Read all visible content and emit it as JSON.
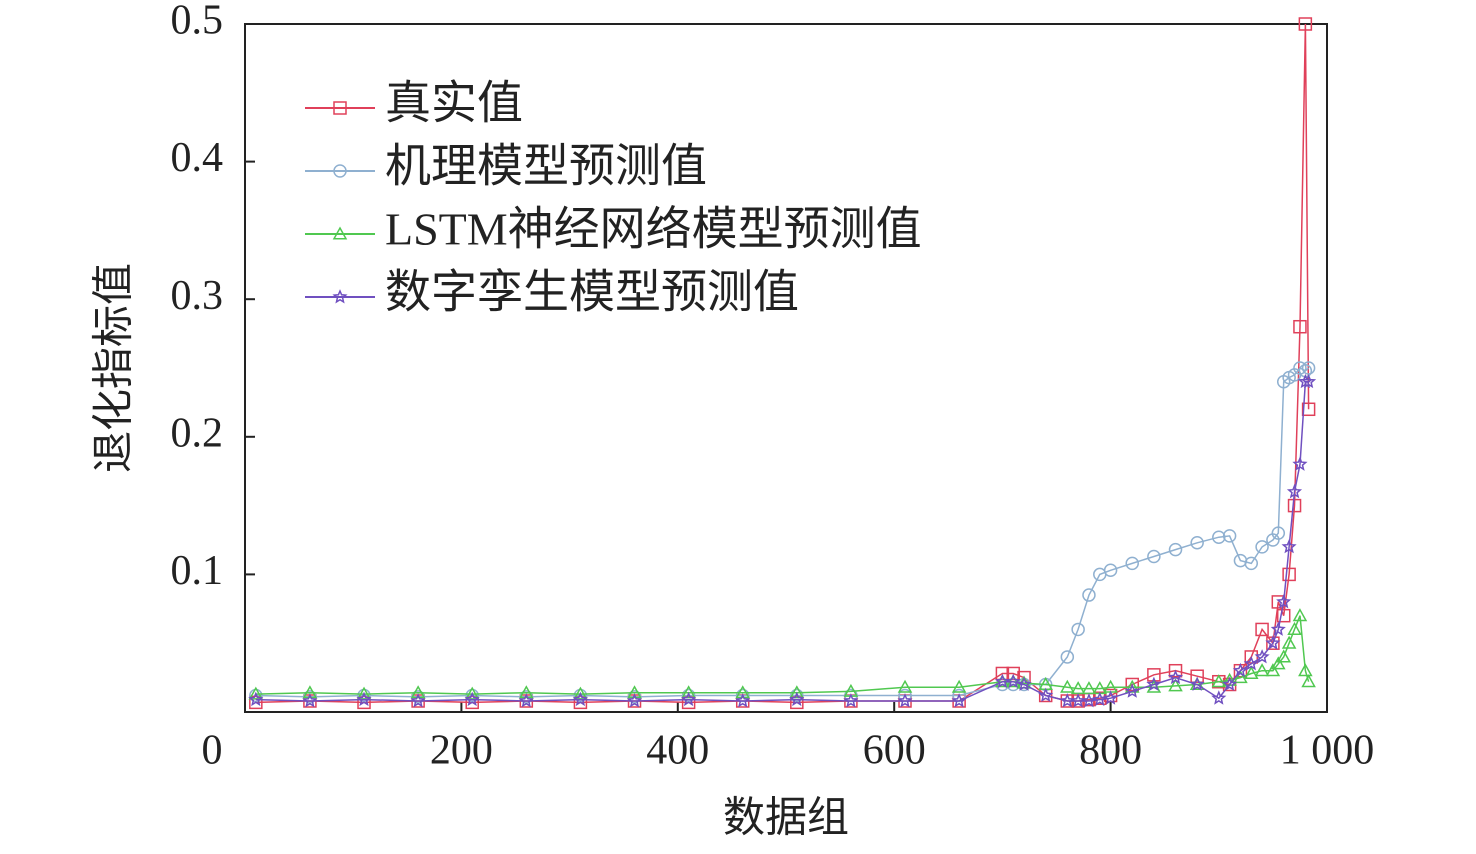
{
  "chart_data": {
    "type": "line",
    "xlabel": "数据组",
    "ylabel": "退化指标值",
    "xlim": [
      0,
      1000
    ],
    "ylim": [
      0,
      0.5
    ],
    "xticks": [
      0,
      200,
      400,
      600,
      800,
      {
        "value": 1000,
        "label": "1 000"
      }
    ],
    "yticks": [
      0.1,
      0.2,
      0.3,
      0.4,
      0.5
    ],
    "legend": "upper left",
    "x": [
      10,
      60,
      110,
      160,
      210,
      260,
      310,
      360,
      410,
      460,
      510,
      560,
      610,
      660,
      700,
      710,
      720,
      740,
      760,
      770,
      780,
      790,
      800,
      820,
      840,
      860,
      880,
      900,
      910,
      920,
      930,
      940,
      950,
      955,
      960,
      965,
      970,
      975,
      980,
      983
    ],
    "series": [
      {
        "name": "真实值",
        "color": "#e0405a",
        "marker": "square",
        "values": [
          0.007,
          0.008,
          0.007,
          0.008,
          0.007,
          0.008,
          0.007,
          0.008,
          0.007,
          0.008,
          0.007,
          0.008,
          0.008,
          0.008,
          0.028,
          0.028,
          0.025,
          0.012,
          0.008,
          0.008,
          0.009,
          0.01,
          0.012,
          0.02,
          0.027,
          0.03,
          0.026,
          0.022,
          0.02,
          0.03,
          0.04,
          0.06,
          0.05,
          0.08,
          0.07,
          0.1,
          0.15,
          0.28,
          0.5,
          0.22
        ]
      },
      {
        "name": "机理模型预测值",
        "color": "#8fb0d0",
        "marker": "circle",
        "values": [
          0.012,
          0.011,
          0.012,
          0.011,
          0.012,
          0.011,
          0.012,
          0.011,
          0.012,
          0.012,
          0.012,
          0.012,
          0.012,
          0.012,
          0.02,
          0.02,
          0.02,
          0.02,
          0.04,
          0.06,
          0.085,
          0.1,
          0.103,
          0.108,
          0.113,
          0.118,
          0.123,
          0.127,
          0.128,
          0.11,
          0.108,
          0.12,
          0.125,
          0.13,
          0.24,
          0.243,
          0.245,
          0.25,
          0.248,
          0.25
        ]
      },
      {
        "name": "LSTM神经网络模型预测值",
        "color": "#50c850",
        "marker": "triangle",
        "values": [
          0.013,
          0.014,
          0.013,
          0.014,
          0.013,
          0.014,
          0.013,
          0.014,
          0.014,
          0.014,
          0.014,
          0.015,
          0.018,
          0.018,
          0.022,
          0.022,
          0.021,
          0.02,
          0.018,
          0.017,
          0.017,
          0.017,
          0.018,
          0.018,
          0.018,
          0.019,
          0.02,
          0.022,
          0.023,
          0.025,
          0.028,
          0.03,
          0.03,
          0.035,
          0.04,
          0.05,
          0.06,
          0.07,
          0.03,
          0.022
        ]
      },
      {
        "name": "数字孪生模型预测值",
        "color": "#7050c0",
        "marker": "star",
        "values": [
          0.009,
          0.008,
          0.009,
          0.008,
          0.009,
          0.008,
          0.009,
          0.008,
          0.009,
          0.008,
          0.009,
          0.008,
          0.008,
          0.008,
          0.022,
          0.022,
          0.02,
          0.012,
          0.008,
          0.008,
          0.008,
          0.009,
          0.01,
          0.015,
          0.02,
          0.025,
          0.02,
          0.01,
          0.02,
          0.03,
          0.035,
          0.04,
          0.05,
          0.06,
          0.08,
          0.12,
          0.16,
          0.18,
          0.24,
          0.24
        ]
      }
    ]
  }
}
